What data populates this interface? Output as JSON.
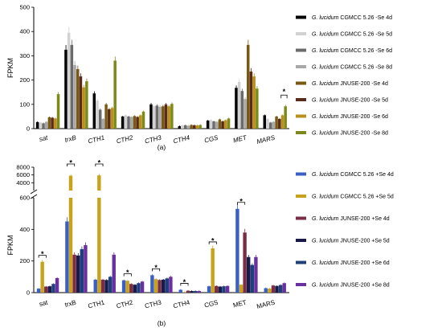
{
  "chart_data": [
    {
      "type": "bar",
      "caption": "(a)",
      "ylabel": "FPKM",
      "ylim": [
        0,
        500
      ],
      "yticks": [
        0,
        100,
        200,
        300,
        400,
        500
      ],
      "categories": [
        "sat",
        "trxB",
        "CTH1",
        "CTH2",
        "CTH3",
        "CTH4",
        "CGS",
        "MET",
        "MARS"
      ],
      "legend_position": "right",
      "series": [
        {
          "name": "G. lucidum CGMCC 5.26 -Se 4d",
          "color": "#000000",
          "values": [
            27,
            325,
            145,
            50,
            100,
            10,
            33,
            168,
            55
          ]
        },
        {
          "name": "G. lucidum CGMCC 5.26 -Se 5d",
          "color": "#d2d2d2",
          "values": [
            25,
            395,
            115,
            55,
            92,
            13,
            35,
            192,
            40
          ]
        },
        {
          "name": "G. lucidum CGMCC 5.26 -Se 6d",
          "color": "#6b6b6b",
          "values": [
            22,
            345,
            78,
            50,
            95,
            14,
            30,
            155,
            25
          ]
        },
        {
          "name": "G. lucidum CGMCC 5.26 -Se 8d",
          "color": "#a8a8a8",
          "values": [
            28,
            262,
            40,
            48,
            90,
            12,
            28,
            122,
            28
          ]
        },
        {
          "name": "G. lucidum JNUSE-200 -Se 4d",
          "color": "#7a5a12",
          "values": [
            47,
            245,
            100,
            52,
            92,
            15,
            38,
            345,
            50
          ]
        },
        {
          "name": "G. lucidum JNUSE-200 -Se 5d",
          "color": "#5a2a1a",
          "values": [
            45,
            215,
            80,
            48,
            100,
            14,
            30,
            235,
            40
          ]
        },
        {
          "name": "G. lucidum JNUSE-200 -Se 6d",
          "color": "#b8901a",
          "values": [
            42,
            170,
            85,
            55,
            92,
            13,
            35,
            215,
            55
          ]
        },
        {
          "name": "G. lucidum JNUSE-200 -Se 8d",
          "color": "#7d8a1a",
          "values": [
            142,
            195,
            280,
            70,
            102,
            15,
            42,
            165,
            92
          ]
        }
      ],
      "annotations": [
        {
          "category": "MARS",
          "text": "*"
        }
      ]
    },
    {
      "type": "bar",
      "caption": "(b)",
      "ylabel": "FPKM",
      "ylim": [
        0,
        8000
      ],
      "axis_break": [
        600,
        2000
      ],
      "yticks": [
        0,
        200,
        400,
        600,
        4000,
        6000,
        8000
      ],
      "categories": [
        "sat",
        "trxB",
        "CTH1",
        "CTH2",
        "CTH3",
        "CTH4",
        "CGS",
        "MET",
        "MARS"
      ],
      "legend_position": "right",
      "series": [
        {
          "name": "G. lucidum CGMCC 5.26 +Se 4d",
          "color": "#3b5fc4",
          "values": [
            25,
            450,
            82,
            78,
            110,
            18,
            40,
            530,
            28
          ]
        },
        {
          "name": "G. lucidum CGMCC 5.26 +Se 5d",
          "color": "#c8a21a",
          "values": [
            195,
            5800,
            5900,
            75,
            85,
            3,
            280,
            50,
            25
          ]
        },
        {
          "name": "G. lucidum JUNSE-200 +Se 4d",
          "color": "#7a2e45",
          "values": [
            38,
            240,
            82,
            55,
            80,
            12,
            42,
            380,
            45
          ]
        },
        {
          "name": "G. lucidum JNUSE-200 +Se 5d",
          "color": "#1a1a4a",
          "values": [
            40,
            235,
            80,
            50,
            82,
            10,
            38,
            225,
            42
          ]
        },
        {
          "name": "G. lucidum JNUSE-200 +Se 6d",
          "color": "#1e3f7a",
          "values": [
            55,
            275,
            100,
            60,
            90,
            10,
            40,
            175,
            48
          ]
        },
        {
          "name": "G. lucidum JNUSE-200 +Se 8d",
          "color": "#6a2fa0",
          "values": [
            92,
            300,
            240,
            70,
            100,
            10,
            42,
            225,
            60
          ]
        }
      ],
      "annotations": [
        {
          "category": "sat",
          "text": "*"
        },
        {
          "category": "trxB",
          "text": "*"
        },
        {
          "category": "CTH1",
          "text": "*"
        },
        {
          "category": "CTH2",
          "text": "*"
        },
        {
          "category": "CTH3",
          "text": "*"
        },
        {
          "category": "CTH4",
          "text": "*"
        },
        {
          "category": "CGS",
          "text": "*"
        },
        {
          "category": "MET",
          "text": "*"
        }
      ]
    }
  ]
}
